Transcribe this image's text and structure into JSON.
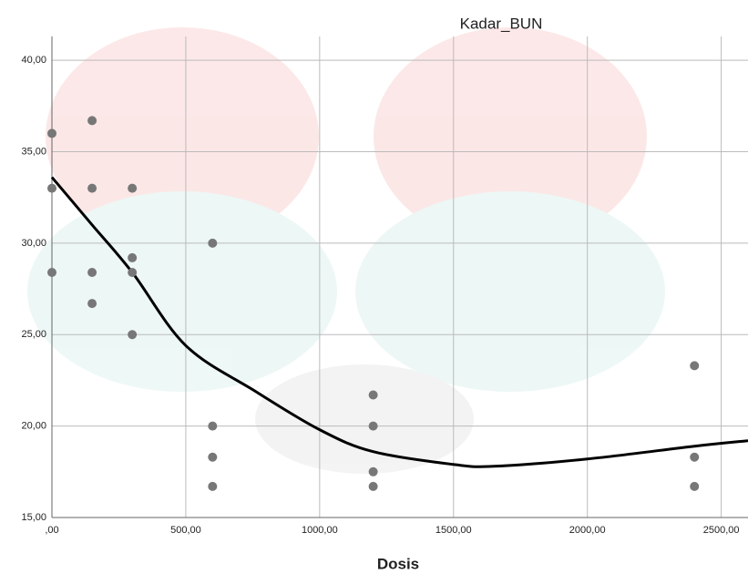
{
  "chart_data": {
    "type": "scatter",
    "title": "Kadar_BUN",
    "x_label": "Dosis",
    "xlim": [
      0,
      2600
    ],
    "ylim": [
      15,
      41.3
    ],
    "xticks": [
      {
        "value": 0,
        "label": ",00"
      },
      {
        "value": 500,
        "label": "500,00"
      },
      {
        "value": 1000,
        "label": "1000,00"
      },
      {
        "value": 1500,
        "label": "1500,00"
      },
      {
        "value": 2000,
        "label": "2000,00"
      },
      {
        "value": 2500,
        "label": "2500,00"
      }
    ],
    "yticks": [
      {
        "value": 15,
        "label": "15,00"
      },
      {
        "value": 20,
        "label": "20,00"
      },
      {
        "value": 25,
        "label": "25,00"
      },
      {
        "value": 30,
        "label": "30,00"
      },
      {
        "value": 35,
        "label": "35,00"
      },
      {
        "value": 40,
        "label": "40,00"
      }
    ],
    "grid": true,
    "series": [
      {
        "color": "#777777",
        "x": [
          0,
          0,
          0,
          150,
          150,
          150,
          150,
          300,
          300,
          300,
          300,
          600,
          600,
          600,
          600,
          1200,
          1200,
          1200,
          1200,
          2400,
          2400,
          2400
        ],
        "values": [
          36,
          33,
          28.4,
          36.7,
          33,
          28.4,
          26.7,
          33,
          29.2,
          28.4,
          25,
          30,
          20,
          18.3,
          16.7,
          21.7,
          20,
          17.5,
          16.7,
          23.3,
          18.3,
          16.7
        ]
      }
    ],
    "fit": {
      "color": "#000000",
      "x": [
        0,
        150,
        300,
        500,
        760,
        1000,
        1200,
        1500,
        1650,
        2000,
        2400,
        2600
      ],
      "values": [
        33.6,
        31.0,
        28.4,
        24.4,
        21.9,
        19.8,
        18.6,
        17.9,
        17.8,
        18.2,
        18.9,
        19.2
      ]
    }
  }
}
